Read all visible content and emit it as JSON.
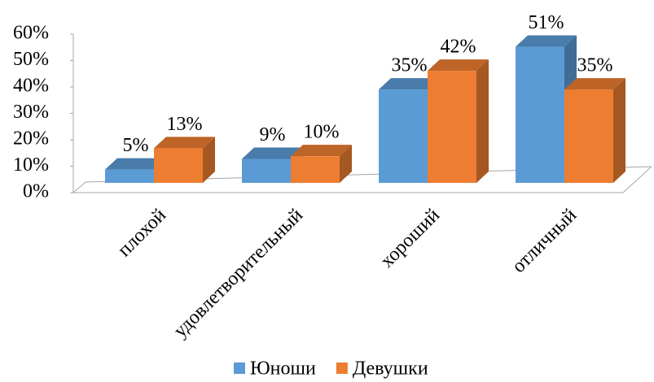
{
  "chart_data": {
    "type": "bar3d",
    "categories": [
      "плохой",
      "удовлетворительный",
      "хороший",
      "отличный"
    ],
    "series": [
      {
        "name": "Юноши",
        "color": "#5b9bd5",
        "values": [
          5,
          9,
          35,
          51
        ],
        "value_labels": [
          "5%",
          "9%",
          "35%",
          "51%"
        ]
      },
      {
        "name": "Девушки",
        "color": "#ed7d31",
        "values": [
          13,
          10,
          42,
          35
        ],
        "value_labels": [
          "13%",
          "10%",
          "42%",
          "35%"
        ]
      }
    ],
    "ylim": [
      0,
      60
    ],
    "yticks": [
      {
        "value": 0,
        "label": "0%"
      },
      {
        "value": 10,
        "label": "10%"
      },
      {
        "value": 20,
        "label": "20%"
      },
      {
        "value": 30,
        "label": "30%"
      },
      {
        "value": 40,
        "label": "40%"
      },
      {
        "value": 50,
        "label": "50%"
      },
      {
        "value": 60,
        "label": "60%"
      }
    ],
    "grid": false,
    "legend": "bottom"
  }
}
